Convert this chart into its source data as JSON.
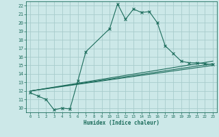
{
  "title": "",
  "xlabel": "Humidex (Indice chaleur)",
  "bg_color": "#cce8e8",
  "grid_color": "#a8cccc",
  "line_color": "#1a6b5a",
  "xlim": [
    -0.5,
    23.5
  ],
  "ylim": [
    9.5,
    22.5
  ],
  "xticks": [
    0,
    1,
    2,
    3,
    4,
    5,
    6,
    7,
    8,
    9,
    10,
    11,
    12,
    13,
    14,
    15,
    16,
    17,
    18,
    19,
    20,
    21,
    22,
    23
  ],
  "yticks": [
    10,
    11,
    12,
    13,
    14,
    15,
    16,
    17,
    18,
    19,
    20,
    21,
    22
  ],
  "line1_x": [
    0,
    1,
    2,
    3,
    4,
    5,
    6,
    7,
    10,
    11,
    12,
    13,
    14,
    15,
    16,
    17,
    18,
    19,
    20,
    21,
    22,
    23
  ],
  "line1_y": [
    11.8,
    11.4,
    11.0,
    9.8,
    10.0,
    9.9,
    13.2,
    16.6,
    19.3,
    22.2,
    20.4,
    21.6,
    21.2,
    21.3,
    20.0,
    17.3,
    16.4,
    15.5,
    15.3,
    15.3,
    15.2,
    15.1
  ],
  "line2_x": [
    0,
    23
  ],
  "line2_y": [
    12.0,
    15.5
  ],
  "line3_x": [
    0,
    23
  ],
  "line3_y": [
    12.0,
    15.2
  ],
  "line4_x": [
    0,
    23
  ],
  "line4_y": [
    12.0,
    15.0
  ]
}
